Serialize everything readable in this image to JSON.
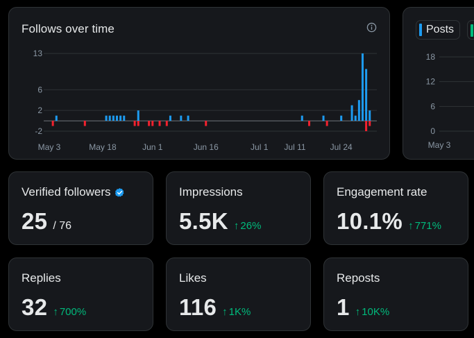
{
  "follows_card": {
    "title": "Follows over time",
    "info_icon": "info-circle-icon"
  },
  "chart_data": [
    {
      "type": "bar",
      "title": "Follows over time",
      "yticks": [
        -2,
        2,
        6,
        13
      ],
      "ylim": [
        -2,
        13
      ],
      "xticks": [
        "May 3",
        "May 18",
        "Jun 1",
        "Jun 16",
        "Jul 1",
        "Jul 11",
        "Jul 24"
      ],
      "x_start": "May 3",
      "x_end": "Aug 3",
      "grid": true,
      "colors": {
        "positive": "#1d9bf0",
        "negative": "#f4212e"
      },
      "series": [
        {
          "values": [
            {
              "x": "May 4",
              "y": -1
            },
            {
              "x": "May 5",
              "y": 1
            },
            {
              "x": "May 13",
              "y": -1
            },
            {
              "x": "May 19",
              "y": 1
            },
            {
              "x": "May 20",
              "y": 1
            },
            {
              "x": "May 21",
              "y": 1
            },
            {
              "x": "May 22",
              "y": 1
            },
            {
              "x": "May 23",
              "y": 1
            },
            {
              "x": "May 24",
              "y": 1
            },
            {
              "x": "May 27",
              "y": -1
            },
            {
              "x": "May 28",
              "y": 2
            },
            {
              "x": "May 28",
              "y": -1
            },
            {
              "x": "May 31",
              "y": -1
            },
            {
              "x": "Jun 1",
              "y": -1
            },
            {
              "x": "Jun 3",
              "y": -1
            },
            {
              "x": "Jun 5",
              "y": -1
            },
            {
              "x": "Jun 6",
              "y": 1
            },
            {
              "x": "Jun 9",
              "y": 1
            },
            {
              "x": "Jun 11",
              "y": 1
            },
            {
              "x": "Jun 16",
              "y": -1
            },
            {
              "x": "Jul 13",
              "y": 1
            },
            {
              "x": "Jul 15",
              "y": -1
            },
            {
              "x": "Jul 19",
              "y": 1
            },
            {
              "x": "Jul 20",
              "y": -1
            },
            {
              "x": "Jul 24",
              "y": 1
            },
            {
              "x": "Jul 27",
              "y": 3
            },
            {
              "x": "Jul 28",
              "y": 1
            },
            {
              "x": "Jul 29",
              "y": 4
            },
            {
              "x": "Jul 30",
              "y": 13
            },
            {
              "x": "Jul 31",
              "y": 10
            },
            {
              "x": "Jul 31",
              "y": -2
            },
            {
              "x": "Aug 1",
              "y": 2
            },
            {
              "x": "Aug 1",
              "y": -1
            }
          ]
        }
      ]
    },
    {
      "type": "line",
      "legend": [
        "Posts"
      ],
      "yticks": [
        0,
        6,
        12,
        18
      ],
      "xticks": [
        "May 3"
      ],
      "ylim": [
        0,
        18
      ],
      "grid": true
    }
  ],
  "posts_card": {
    "legend_label": "Posts"
  },
  "stats": [
    {
      "label": "Verified followers",
      "value": "25",
      "sub": "/ 76",
      "icon": "verified-badge-icon"
    },
    {
      "label": "Impressions",
      "value": "5.5K",
      "delta": "26%"
    },
    {
      "label": "Engagement rate",
      "value": "10.1%",
      "delta": "771%"
    },
    {
      "label": "Replies",
      "value": "32",
      "delta": "700%"
    },
    {
      "label": "Likes",
      "value": "116",
      "delta": "1K%"
    },
    {
      "label": "Reposts",
      "value": "1",
      "delta": "10K%"
    }
  ],
  "delta_arrow": "↑",
  "colors": {
    "accent": "#1d9bf0",
    "positive": "#00ba7c",
    "negative": "#f4212e"
  }
}
